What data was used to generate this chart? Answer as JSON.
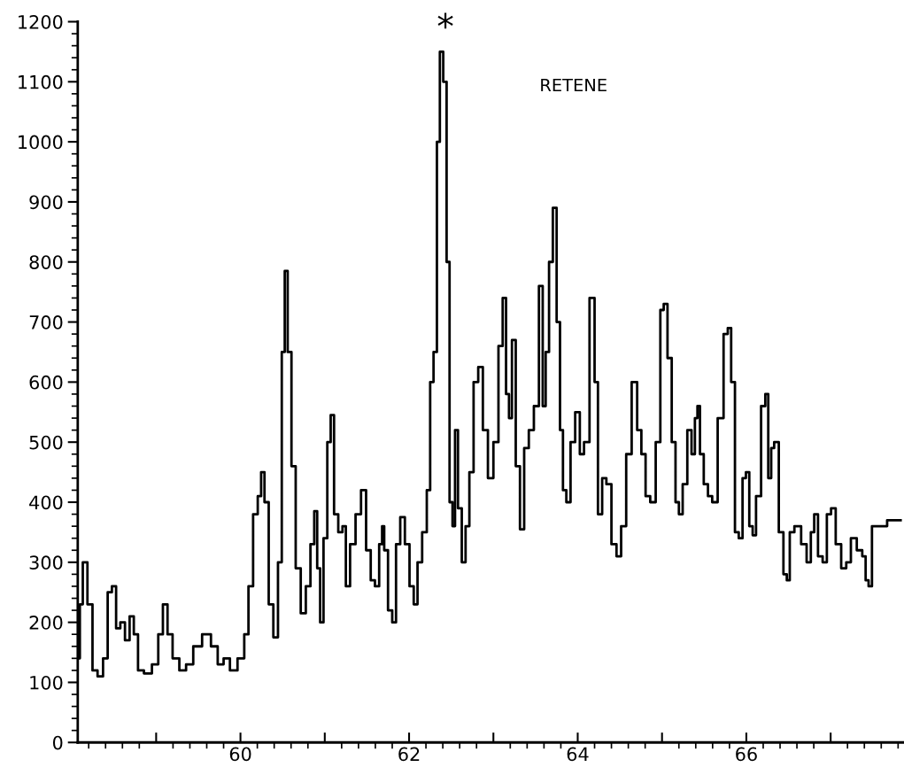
{
  "chart_data": {
    "type": "step",
    "color": "#000000",
    "x": [
      58.08,
      58.11,
      58.15,
      58.22,
      58.27,
      58.34,
      58.4,
      58.45,
      58.5,
      58.55,
      58.6,
      58.66,
      58.71,
      58.76,
      58.81,
      58.9,
      59.0,
      59.05,
      59.11,
      59.16,
      59.23,
      59.32,
      59.39,
      59.49,
      59.6,
      59.7,
      59.76,
      59.84,
      59.91,
      60.02,
      60.07,
      60.12,
      60.18,
      60.23,
      60.26,
      60.31,
      60.36,
      60.42,
      60.47,
      60.51,
      60.54,
      60.58,
      60.63,
      60.68,
      60.75,
      60.8,
      60.86,
      60.89,
      60.93,
      60.96,
      61.01,
      61.05,
      61.09,
      61.13,
      61.19,
      61.23,
      61.27,
      61.33,
      61.4,
      61.46,
      61.52,
      61.57,
      61.62,
      61.67,
      61.69,
      61.72,
      61.78,
      61.82,
      61.87,
      61.92,
      61.98,
      62.03,
      62.08,
      62.12,
      62.19,
      62.23,
      62.27,
      62.31,
      62.35,
      62.38,
      62.43,
      62.46,
      62.5,
      62.53,
      62.56,
      62.6,
      62.65,
      62.69,
      62.74,
      62.79,
      62.85,
      62.9,
      62.97,
      63.03,
      63.09,
      63.13,
      63.17,
      63.2,
      63.24,
      63.29,
      63.34,
      63.39,
      63.45,
      63.51,
      63.57,
      63.6,
      63.64,
      63.68,
      63.73,
      63.77,
      63.81,
      63.84,
      63.89,
      63.94,
      64.0,
      64.05,
      64.1,
      64.18,
      64.22,
      64.26,
      64.32,
      64.36,
      64.44,
      64.48,
      64.55,
      64.6,
      64.68,
      64.73,
      64.78,
      64.83,
      64.89,
      64.96,
      65.0,
      65.04,
      65.09,
      65.14,
      65.18,
      65.22,
      65.27,
      65.33,
      65.37,
      65.41,
      65.43,
      65.47,
      65.52,
      65.57,
      65.62,
      65.7,
      65.76,
      65.8,
      65.84,
      65.89,
      65.93,
      65.98,
      66.01,
      66.06,
      66.09,
      66.14,
      66.21,
      66.24,
      66.28,
      66.31,
      66.35,
      66.42,
      66.46,
      66.5,
      66.53,
      66.61,
      66.69,
      66.74,
      66.79,
      66.82,
      66.88,
      66.93,
      66.98,
      67.03,
      67.09,
      67.16,
      67.21,
      67.27,
      67.35,
      67.4,
      67.43,
      67.47,
      67.51,
      67.83
    ],
    "values": [
      140,
      230,
      300,
      230,
      120,
      110,
      140,
      250,
      260,
      190,
      200,
      170,
      210,
      180,
      120,
      115,
      130,
      180,
      230,
      180,
      140,
      120,
      130,
      160,
      180,
      160,
      130,
      140,
      120,
      140,
      180,
      260,
      380,
      410,
      450,
      400,
      230,
      175,
      300,
      650,
      785,
      650,
      460,
      290,
      215,
      260,
      330,
      385,
      290,
      200,
      340,
      500,
      545,
      380,
      350,
      360,
      260,
      330,
      380,
      420,
      320,
      270,
      260,
      330,
      360,
      320,
      220,
      200,
      330,
      375,
      330,
      260,
      230,
      300,
      350,
      420,
      600,
      650,
      1000,
      1150,
      1100,
      800,
      400,
      360,
      520,
      390,
      300,
      360,
      450,
      600,
      625,
      520,
      440,
      500,
      660,
      740,
      580,
      540,
      670,
      460,
      355,
      490,
      520,
      560,
      760,
      560,
      650,
      800,
      890,
      700,
      520,
      420,
      400,
      500,
      550,
      480,
      500,
      740,
      600,
      380,
      440,
      430,
      330,
      310,
      360,
      480,
      600,
      520,
      480,
      410,
      400,
      500,
      720,
      730,
      640,
      500,
      400,
      380,
      430,
      520,
      480,
      540,
      560,
      480,
      430,
      410,
      400,
      540,
      680,
      690,
      600,
      350,
      340,
      440,
      450,
      360,
      345,
      410,
      560,
      580,
      440,
      490,
      500,
      350,
      280,
      270,
      350,
      360,
      330,
      300,
      350,
      380,
      310,
      300,
      380,
      390,
      330,
      290,
      300,
      340,
      320,
      310,
      270,
      260,
      360,
      370
    ],
    "xlim": [
      58.07,
      67.87
    ],
    "ylim": [
      0,
      1200
    ],
    "xticks": [
      {
        "value": 59,
        "label": null
      },
      60,
      {
        "value": 61,
        "label": null
      },
      62,
      {
        "value": 63,
        "label": null
      },
      64,
      {
        "value": 65,
        "label": null
      },
      66,
      {
        "value": 67,
        "label": null
      }
    ],
    "yticks": [
      0,
      100,
      200,
      300,
      400,
      500,
      600,
      700,
      800,
      900,
      1000,
      1100,
      1200
    ],
    "annotations": [
      "*",
      "RETENE"
    ],
    "grid": false,
    "legend": false,
    "marker": "none",
    "line_style": "solid"
  }
}
